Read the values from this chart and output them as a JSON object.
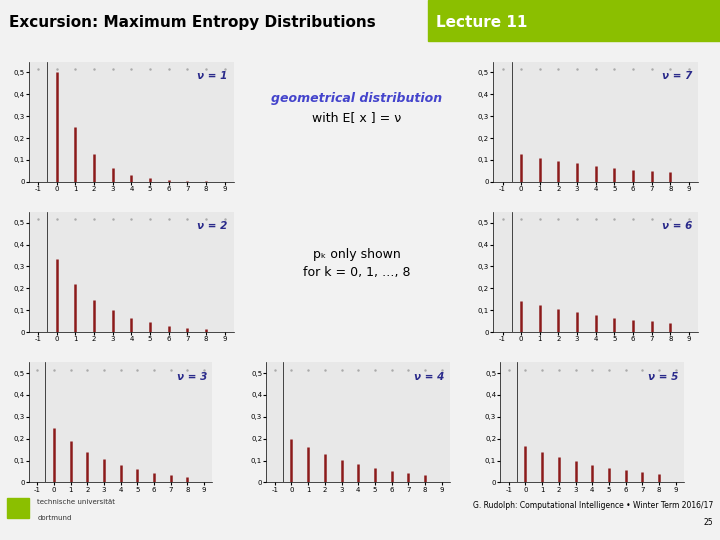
{
  "title": "Excursion: Maximum Entropy Distributions",
  "lecture": "Lecture 11",
  "header_bg": "#8BBF00",
  "bar_color": "#8B1A1A",
  "nu_color": "#2B2B8B",
  "geo_label_color": "#4444CC",
  "footer_text": "G. Rudolph: Computational Intelligence • Winter Term 2016/17",
  "page_number": "25",
  "k_max": 8,
  "ylim": [
    0,
    0.55
  ],
  "ytick_labels": [
    "0",
    "0,1",
    "0,2",
    "0,3",
    "0,4",
    "0,5"
  ],
  "ytick_vals": [
    0.0,
    0.1,
    0.2,
    0.3,
    0.4,
    0.5
  ],
  "xticks": [
    -1,
    0,
    1,
    2,
    3,
    4,
    5,
    6,
    7,
    8,
    9
  ],
  "subplot_bg": "#E8E8E8",
  "center_text_1": "geometrical distribution",
  "center_text_2": "with E[ x ] = ν",
  "center_text_3": "pₖ only shown",
  "center_text_4": "for k = 0, 1, …, 8",
  "tu_logo_color": "#8BBF00",
  "page_bg": "#F2F2F2"
}
